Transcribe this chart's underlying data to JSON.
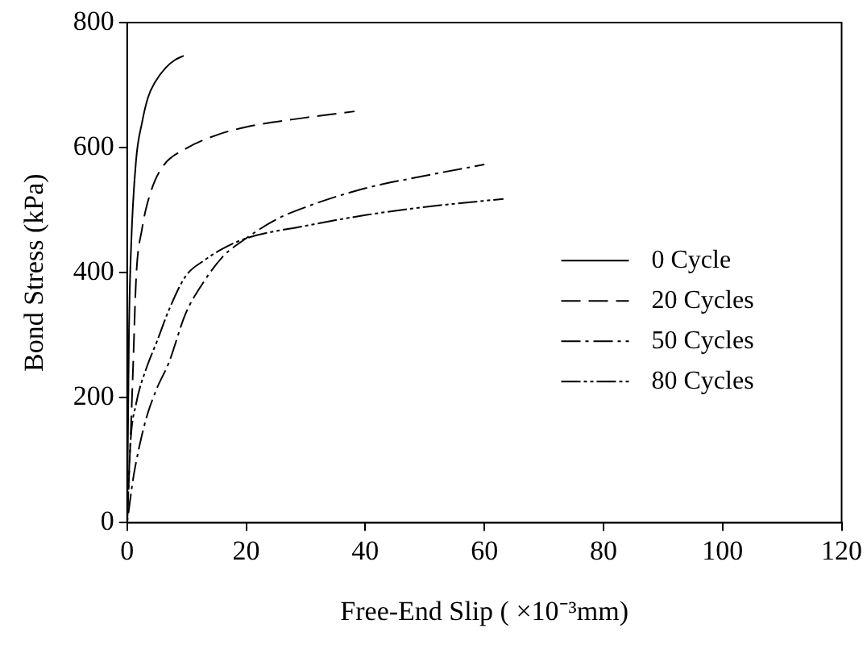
{
  "chart_data": {
    "type": "line",
    "xlabel": "Free-End Slip ( ×10⁻³mm)",
    "ylabel": "Bond Stress (kPa)",
    "xlim": [
      0,
      120
    ],
    "xticks": [
      0,
      20,
      40,
      60,
      80,
      100,
      120
    ],
    "ylim": [
      0,
      800
    ],
    "yticks": [
      0,
      200,
      400,
      600,
      800
    ],
    "grid": false,
    "legend": "right",
    "marker": "none",
    "series": [
      {
        "name": "0 Cycle",
        "color": "#000000",
        "line_style": "solid",
        "x": [
          0,
          0.3,
          0.7,
          1.5,
          2.5,
          3.5,
          4.7,
          6.5,
          8,
          9.5
        ],
        "values": [
          0,
          300,
          450,
          580,
          640,
          680,
          705,
          728,
          740,
          747
        ]
      },
      {
        "name": "20 Cycles",
        "color": "#000000",
        "line_style": "dashed",
        "x": [
          0,
          0.55,
          1,
          1.5,
          2.5,
          4,
          6,
          9.8,
          15,
          20,
          30,
          38.2
        ],
        "values": [
          0,
          130,
          250,
          390,
          470,
          530,
          570,
          598,
          620,
          633,
          648,
          658
        ]
      },
      {
        "name": "50 Cycles",
        "color": "#000000",
        "line_style": "dashdot",
        "x": [
          0,
          1,
          2,
          3.3,
          5,
          7,
          9.8,
          12.5,
          16,
          20,
          25,
          30,
          40,
          50,
          60
        ],
        "values": [
          0,
          70,
          120,
          170,
          215,
          256,
          334,
          380,
          425,
          455,
          485,
          505,
          535,
          555,
          573
        ]
      },
      {
        "name": "80 Cycles",
        "color": "#000000",
        "line_style": "dashdotdot",
        "x": [
          0,
          0.55,
          1.5,
          3.3,
          5,
          7,
          9.8,
          13,
          16,
          20,
          30,
          40,
          50,
          63.2
        ],
        "values": [
          0,
          127,
          190,
          249,
          290,
          340,
          394,
          420,
          438,
          455,
          475,
          492,
          505,
          518
        ]
      }
    ]
  }
}
